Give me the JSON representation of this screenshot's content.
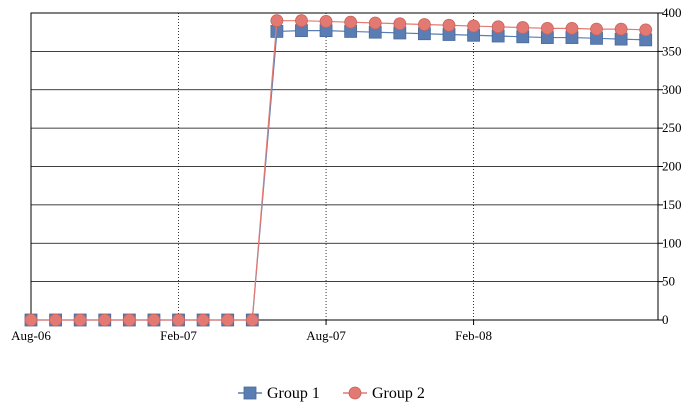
{
  "chart_data": {
    "type": "line",
    "title": "",
    "xlabel": "",
    "ylabel": "",
    "y_axis_side": "right",
    "ylim": [
      0,
      400
    ],
    "y_ticks": [
      0,
      50,
      100,
      150,
      200,
      250,
      300,
      350,
      400
    ],
    "x_ticks": [
      "Aug-06",
      "Feb-07",
      "Aug-07",
      "Feb-08"
    ],
    "xlim": [
      "2006-08",
      "2008-09"
    ],
    "grid": true,
    "legend_position": "bottom-center",
    "x": [
      "2006-08",
      "2006-09",
      "2006-10",
      "2006-11",
      "2006-12",
      "2007-01",
      "2007-02",
      "2007-03",
      "2007-04",
      "2007-05",
      "2007-06",
      "2007-07",
      "2007-08",
      "2007-09",
      "2007-10",
      "2007-11",
      "2007-12",
      "2008-01",
      "2008-02",
      "2008-03",
      "2008-04",
      "2008-05",
      "2008-06",
      "2008-07",
      "2008-08",
      "2008-09"
    ],
    "series": [
      {
        "name": "Group 1",
        "color": "#5a7db3",
        "marker": "square",
        "values": [
          0,
          0,
          0,
          0,
          0,
          0,
          0,
          0,
          0,
          0,
          376,
          377,
          377,
          376,
          375,
          374,
          373,
          372,
          371,
          370,
          369,
          368,
          368,
          367,
          366,
          365
        ]
      },
      {
        "name": "Group 2",
        "color": "#e27a73",
        "marker": "circle",
        "values": [
          0,
          0,
          0,
          0,
          0,
          0,
          0,
          0,
          0,
          0,
          390,
          390,
          389,
          388,
          387,
          386,
          385,
          384,
          383,
          382,
          381,
          380,
          380,
          379,
          379,
          378
        ]
      }
    ]
  }
}
